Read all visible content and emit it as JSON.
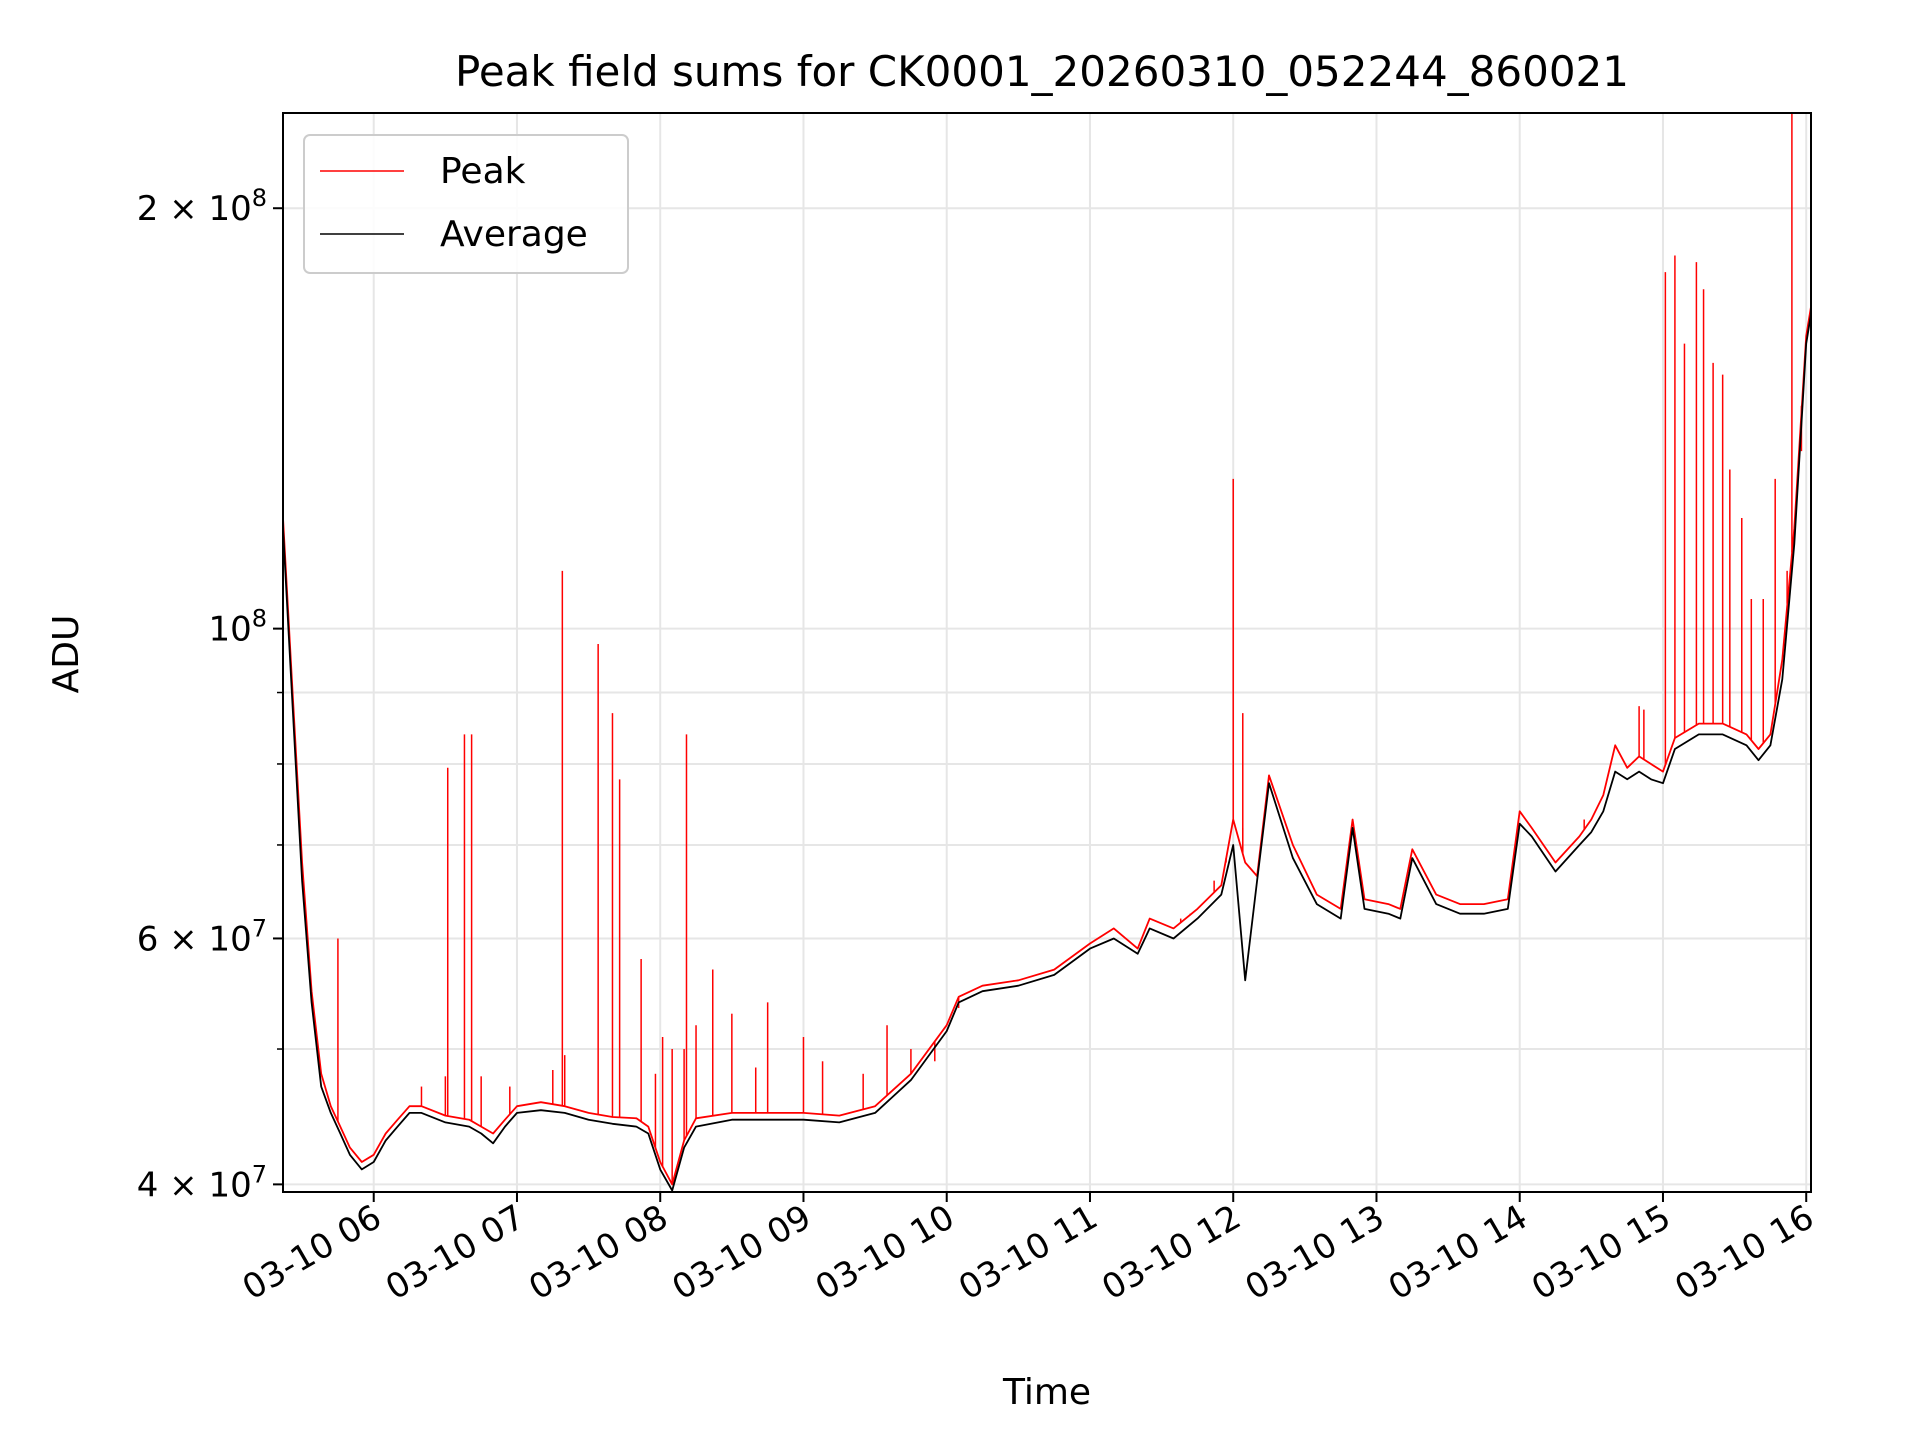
{
  "chart_data": {
    "type": "line",
    "title": "Peak field sums for CK0001_20260310_052244_860021",
    "xlabel": "Time",
    "ylabel": "ADU",
    "yscale": "log",
    "ylim": [
      39500000,
      234000000
    ],
    "xlim": [
      "2026-03-10 05:22",
      "2026-03-10 16:02"
    ],
    "x_ticks": [
      {
        "t": "2026-03-10 06:00",
        "label": "03-10 06"
      },
      {
        "t": "2026-03-10 07:00",
        "label": "03-10 07"
      },
      {
        "t": "2026-03-10 08:00",
        "label": "03-10 08"
      },
      {
        "t": "2026-03-10 09:00",
        "label": "03-10 09"
      },
      {
        "t": "2026-03-10 10:00",
        "label": "03-10 10"
      },
      {
        "t": "2026-03-10 11:00",
        "label": "03-10 11"
      },
      {
        "t": "2026-03-10 12:00",
        "label": "03-10 12"
      },
      {
        "t": "2026-03-10 13:00",
        "label": "03-10 13"
      },
      {
        "t": "2026-03-10 14:00",
        "label": "03-10 14"
      },
      {
        "t": "2026-03-10 15:00",
        "label": "03-10 15"
      },
      {
        "t": "2026-03-10 16:00",
        "label": "03-10 16"
      }
    ],
    "y_major_ticks": [
      {
        "value": 40000000,
        "mantissa": "4",
        "exp": "7"
      },
      {
        "value": 60000000,
        "mantissa": "6",
        "exp": "7"
      },
      {
        "value": 100000000,
        "mantissa": "",
        "exp": "8"
      },
      {
        "value": 200000000,
        "mantissa": "2",
        "exp": "8"
      }
    ],
    "y_minor_ticks": [
      50000000,
      70000000,
      80000000,
      90000000
    ],
    "grid": true,
    "legend_position": "upper-left",
    "series": [
      {
        "name": "Peak",
        "color": "#ff0000",
        "x": [
          "2026-03-10 05:22",
          "2026-03-10 05:26",
          "2026-03-10 05:30",
          "2026-03-10 05:34",
          "2026-03-10 05:38",
          "2026-03-10 05:42",
          "2026-03-10 05:46",
          "2026-03-10 05:50",
          "2026-03-10 05:55",
          "2026-03-10 06:00",
          "2026-03-10 06:05",
          "2026-03-10 06:10",
          "2026-03-10 06:15",
          "2026-03-10 06:20",
          "2026-03-10 06:30",
          "2026-03-10 06:40",
          "2026-03-10 06:45",
          "2026-03-10 06:50",
          "2026-03-10 06:55",
          "2026-03-10 07:00",
          "2026-03-10 07:10",
          "2026-03-10 07:20",
          "2026-03-10 07:30",
          "2026-03-10 07:40",
          "2026-03-10 07:50",
          "2026-03-10 07:55",
          "2026-03-10 08:00",
          "2026-03-10 08:05",
          "2026-03-10 08:10",
          "2026-03-10 08:15",
          "2026-03-10 08:30",
          "2026-03-10 08:45",
          "2026-03-10 09:00",
          "2026-03-10 09:15",
          "2026-03-10 09:30",
          "2026-03-10 09:45",
          "2026-03-10 10:00",
          "2026-03-10 10:05",
          "2026-03-10 10:15",
          "2026-03-10 10:30",
          "2026-03-10 10:45",
          "2026-03-10 11:00",
          "2026-03-10 11:10",
          "2026-03-10 11:20",
          "2026-03-10 11:25",
          "2026-03-10 11:35",
          "2026-03-10 11:45",
          "2026-03-10 11:55",
          "2026-03-10 12:00",
          "2026-03-10 12:05",
          "2026-03-10 12:10",
          "2026-03-10 12:15",
          "2026-03-10 12:25",
          "2026-03-10 12:35",
          "2026-03-10 12:45",
          "2026-03-10 12:50",
          "2026-03-10 12:55",
          "2026-03-10 13:05",
          "2026-03-10 13:10",
          "2026-03-10 13:15",
          "2026-03-10 13:25",
          "2026-03-10 13:35",
          "2026-03-10 13:45",
          "2026-03-10 13:55",
          "2026-03-10 14:00",
          "2026-03-10 14:05",
          "2026-03-10 14:15",
          "2026-03-10 14:25",
          "2026-03-10 14:30",
          "2026-03-10 14:35",
          "2026-03-10 14:40",
          "2026-03-10 14:45",
          "2026-03-10 14:50",
          "2026-03-10 14:55",
          "2026-03-10 15:00",
          "2026-03-10 15:05",
          "2026-03-10 15:15",
          "2026-03-10 15:25",
          "2026-03-10 15:35",
          "2026-03-10 15:40",
          "2026-03-10 15:45",
          "2026-03-10 15:50",
          "2026-03-10 15:55",
          "2026-03-10 16:00",
          "2026-03-10 16:02"
        ],
        "values": [
          120000000,
          90000000,
          68000000,
          55000000,
          48000000,
          45500000,
          44000000,
          42500000,
          41500000,
          42000000,
          43500000,
          44500000,
          45500000,
          45500000,
          44800000,
          44500000,
          44000000,
          43500000,
          44500000,
          45500000,
          45800000,
          45500000,
          45000000,
          44700000,
          44600000,
          44000000,
          41500000,
          40000000,
          43000000,
          44600000,
          45000000,
          45000000,
          45000000,
          44800000,
          45500000,
          48000000,
          52000000,
          54500000,
          55500000,
          56000000,
          57000000,
          59500000,
          61000000,
          59000000,
          62000000,
          61000000,
          63000000,
          65500000,
          73000000,
          68000000,
          66500000,
          78500000,
          70000000,
          64500000,
          63000000,
          73000000,
          64000000,
          63500000,
          63000000,
          69500000,
          64500000,
          63500000,
          63500000,
          64000000,
          74000000,
          72000000,
          68000000,
          71000000,
          73000000,
          76000000,
          82500000,
          79500000,
          81000000,
          80000000,
          79000000,
          83500000,
          85500000,
          85500000,
          84000000,
          82000000,
          84000000,
          95000000,
          118000000,
          162000000,
          170000000
        ],
        "spikes": [
          {
            "t": "2026-03-10 05:45",
            "value": 60000000
          },
          {
            "t": "2026-03-10 06:20",
            "value": 47000000
          },
          {
            "t": "2026-03-10 06:30",
            "value": 47800000
          },
          {
            "t": "2026-03-10 06:45",
            "value": 47800000
          },
          {
            "t": "2026-03-10 06:57",
            "value": 47000000
          },
          {
            "t": "2026-03-10 07:15",
            "value": 48300000
          },
          {
            "t": "2026-03-10 07:20",
            "value": 49500000
          },
          {
            "t": "2026-03-10 07:58",
            "value": 48000000
          },
          {
            "t": "2026-03-10 08:01",
            "value": 51000000
          },
          {
            "t": "2026-03-10 08:05",
            "value": 50000000
          },
          {
            "t": "2026-03-10 08:10",
            "value": 50000000
          },
          {
            "t": "2026-03-10 08:15",
            "value": 52000000
          },
          {
            "t": "2026-03-10 08:22",
            "value": 57000000
          },
          {
            "t": "2026-03-10 08:30",
            "value": 53000000
          },
          {
            "t": "2026-03-10 08:40",
            "value": 48500000
          },
          {
            "t": "2026-03-10 08:45",
            "value": 54000000
          },
          {
            "t": "2026-03-10 09:00",
            "value": 51000000
          },
          {
            "t": "2026-03-10 09:08",
            "value": 49000000
          },
          {
            "t": "2026-03-10 09:25",
            "value": 48000000
          },
          {
            "t": "2026-03-10 09:35",
            "value": 52000000
          },
          {
            "t": "2026-03-10 09:45",
            "value": 50000000
          },
          {
            "t": "2026-03-10 09:55",
            "value": 49000000
          },
          {
            "t": "2026-03-10 10:05",
            "value": 53500000
          },
          {
            "t": "2026-03-10 10:28",
            "value": 56000000
          },
          {
            "t": "2026-03-10 11:38",
            "value": 62000000
          },
          {
            "t": "2026-03-10 11:42",
            "value": 62500000
          },
          {
            "t": "2026-03-10 11:52",
            "value": 66000000
          },
          {
            "t": "2026-03-10 11:57",
            "value": 68000000
          },
          {
            "t": "2026-03-10 12:04",
            "value": 72000000
          },
          {
            "t": "2026-03-10 14:22",
            "value": 70000000
          },
          {
            "t": "2026-03-10 14:27",
            "value": 73000000
          },
          {
            "t": "2026-03-10 14:50",
            "value": 88000000
          },
          {
            "t": "2026-03-10 14:52",
            "value": 87500000
          },
          {
            "t": "2026-03-10 15:17",
            "value": 175000000
          },
          {
            "t": "2026-03-10 15:28",
            "value": 130000000
          },
          {
            "t": "2026-03-10 15:33",
            "value": 120000000
          },
          {
            "t": "2026-03-10 15:37",
            "value": 105000000
          },
          {
            "t": "2026-03-10 15:42",
            "value": 105000000
          },
          {
            "t": "2026-03-10 15:47",
            "value": 128000000
          },
          {
            "t": "2026-03-10 15:52",
            "value": 110000000
          }
        ],
        "marked_spikes": [
          {
            "t": "2026-03-10 06:31",
            "value": 79500000
          },
          {
            "t": "2026-03-10 06:38",
            "value": 84000000
          },
          {
            "t": "2026-03-10 06:41",
            "value": 84000000
          },
          {
            "t": "2026-03-10 07:19",
            "value": 110000000
          },
          {
            "t": "2026-03-10 07:34",
            "value": 97500000
          },
          {
            "t": "2026-03-10 07:40",
            "value": 87000000
          },
          {
            "t": "2026-03-10 07:43",
            "value": 78000000
          },
          {
            "t": "2026-03-10 07:52",
            "value": 58000000
          },
          {
            "t": "2026-03-10 08:11",
            "value": 84000000
          },
          {
            "t": "2026-03-10 12:00",
            "value": 128000000
          },
          {
            "t": "2026-03-10 12:04",
            "value": 87000000
          },
          {
            "t": "2026-03-10 15:01",
            "value": 180000000
          },
          {
            "t": "2026-03-10 15:05",
            "value": 185000000
          },
          {
            "t": "2026-03-10 15:09",
            "value": 160000000
          },
          {
            "t": "2026-03-10 15:14",
            "value": 183000000
          },
          {
            "t": "2026-03-10 15:21",
            "value": 155000000
          },
          {
            "t": "2026-03-10 15:25",
            "value": 152000000
          },
          {
            "t": "2026-03-10 15:54",
            "value": 234000000
          },
          {
            "t": "2026-03-10 15:58",
            "value": 134000000
          }
        ]
      },
      {
        "name": "Average",
        "color": "#000000",
        "x": [
          "2026-03-10 05:22",
          "2026-03-10 05:26",
          "2026-03-10 05:30",
          "2026-03-10 05:34",
          "2026-03-10 05:38",
          "2026-03-10 05:42",
          "2026-03-10 05:46",
          "2026-03-10 05:50",
          "2026-03-10 05:55",
          "2026-03-10 06:00",
          "2026-03-10 06:05",
          "2026-03-10 06:10",
          "2026-03-10 06:15",
          "2026-03-10 06:20",
          "2026-03-10 06:30",
          "2026-03-10 06:40",
          "2026-03-10 06:45",
          "2026-03-10 06:50",
          "2026-03-10 06:55",
          "2026-03-10 07:00",
          "2026-03-10 07:10",
          "2026-03-10 07:20",
          "2026-03-10 07:30",
          "2026-03-10 07:40",
          "2026-03-10 07:50",
          "2026-03-10 07:55",
          "2026-03-10 08:00",
          "2026-03-10 08:05",
          "2026-03-10 08:10",
          "2026-03-10 08:15",
          "2026-03-10 08:30",
          "2026-03-10 08:45",
          "2026-03-10 09:00",
          "2026-03-10 09:15",
          "2026-03-10 09:30",
          "2026-03-10 09:45",
          "2026-03-10 10:00",
          "2026-03-10 10:05",
          "2026-03-10 10:15",
          "2026-03-10 10:30",
          "2026-03-10 10:45",
          "2026-03-10 11:00",
          "2026-03-10 11:10",
          "2026-03-10 11:20",
          "2026-03-10 11:25",
          "2026-03-10 11:35",
          "2026-03-10 11:45",
          "2026-03-10 11:55",
          "2026-03-10 12:00",
          "2026-03-10 12:05",
          "2026-03-10 12:10",
          "2026-03-10 12:15",
          "2026-03-10 12:25",
          "2026-03-10 12:35",
          "2026-03-10 12:45",
          "2026-03-10 12:50",
          "2026-03-10 12:55",
          "2026-03-10 13:05",
          "2026-03-10 13:10",
          "2026-03-10 13:15",
          "2026-03-10 13:25",
          "2026-03-10 13:35",
          "2026-03-10 13:45",
          "2026-03-10 13:55",
          "2026-03-10 14:00",
          "2026-03-10 14:05",
          "2026-03-10 14:15",
          "2026-03-10 14:25",
          "2026-03-10 14:30",
          "2026-03-10 14:35",
          "2026-03-10 14:40",
          "2026-03-10 14:45",
          "2026-03-10 14:50",
          "2026-03-10 14:55",
          "2026-03-10 15:00",
          "2026-03-10 15:05",
          "2026-03-10 15:15",
          "2026-03-10 15:25",
          "2026-03-10 15:35",
          "2026-03-10 15:40",
          "2026-03-10 15:45",
          "2026-03-10 15:50",
          "2026-03-10 15:55",
          "2026-03-10 16:00",
          "2026-03-10 16:02"
        ],
        "values": [
          118000000,
          88000000,
          66000000,
          54000000,
          47000000,
          45000000,
          43500000,
          42000000,
          41000000,
          41500000,
          43000000,
          44000000,
          45000000,
          45000000,
          44300000,
          44000000,
          43500000,
          42800000,
          44000000,
          45000000,
          45200000,
          45000000,
          44500000,
          44200000,
          44000000,
          43500000,
          41000000,
          39600000,
          42500000,
          44000000,
          44500000,
          44500000,
          44500000,
          44300000,
          45000000,
          47500000,
          51500000,
          54000000,
          55000000,
          55500000,
          56500000,
          59000000,
          60000000,
          58500000,
          61000000,
          60000000,
          62000000,
          64500000,
          70000000,
          56000000,
          66000000,
          77500000,
          68500000,
          63500000,
          62000000,
          72000000,
          63000000,
          62500000,
          62000000,
          68500000,
          63500000,
          62500000,
          62500000,
          63000000,
          72500000,
          71000000,
          67000000,
          70000000,
          71500000,
          74000000,
          79000000,
          78000000,
          79000000,
          78000000,
          77500000,
          82000000,
          84000000,
          84000000,
          82500000,
          80500000,
          82500000,
          92000000,
          115000000,
          160000000,
          168000000
        ]
      }
    ]
  }
}
